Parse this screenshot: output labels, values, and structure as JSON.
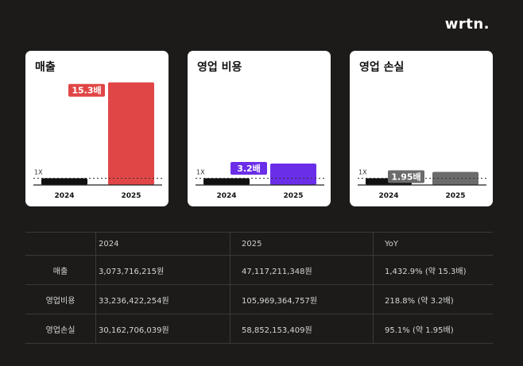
{
  "brand": {
    "logo": "wrtn."
  },
  "chart_data": [
    {
      "type": "bar",
      "title": "매출",
      "categories": [
        "2024",
        "2025"
      ],
      "values": [
        1,
        15.3
      ],
      "baseline_label": "1X",
      "badge": "15.3배",
      "colors": [
        "#111111",
        "#e04646"
      ],
      "badge_color": "#e04646"
    },
    {
      "type": "bar",
      "title": "영업 비용",
      "categories": [
        "2024",
        "2025"
      ],
      "values": [
        1,
        3.2
      ],
      "baseline_label": "1X",
      "badge": "3.2배",
      "colors": [
        "#111111",
        "#6b2ee8"
      ],
      "badge_color": "#6b2ee8"
    },
    {
      "type": "bar",
      "title": "영업 손실",
      "categories": [
        "2024",
        "2025"
      ],
      "values": [
        1,
        1.95
      ],
      "baseline_label": "1X",
      "badge": "1.95배",
      "colors": [
        "#111111",
        "#6b6b6b"
      ],
      "badge_color": "#6b6b6b"
    }
  ],
  "table": {
    "headers": [
      "",
      "2024",
      "2025",
      "YoY"
    ],
    "rows": [
      {
        "label": "매출",
        "v2024": "3,073,716,215원",
        "v2025": "47,117,211,348원",
        "yoy": "1,432.9% (약 15.3배)"
      },
      {
        "label": "영업비용",
        "v2024": "33,236,422,254원",
        "v2025": "105,969,364,757원",
        "yoy": "218.8% (약 3.2배)"
      },
      {
        "label": "영업손실",
        "v2024": "30,162,706,039원",
        "v2025": "58,852,153,409원",
        "yoy": "95.1% (약 1.95배)"
      }
    ]
  }
}
